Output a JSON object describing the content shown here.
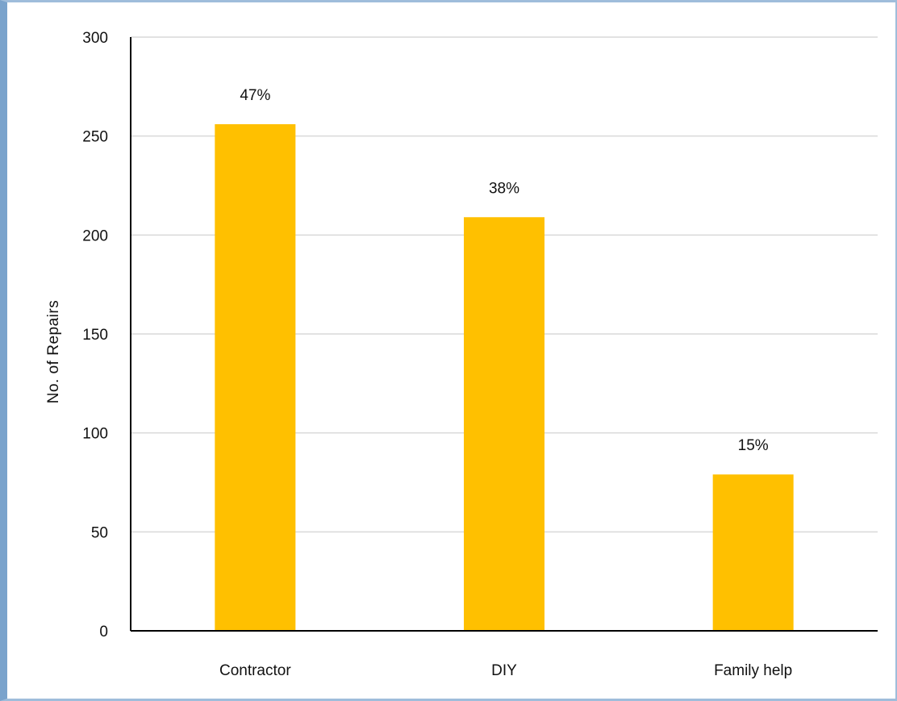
{
  "chart_data": {
    "type": "bar",
    "title": "",
    "xlabel": "",
    "ylabel": "No. of Repairs",
    "ylim": [
      0,
      300
    ],
    "yticks": [
      0,
      50,
      100,
      150,
      200,
      250,
      300
    ],
    "grid": true,
    "legend": "none",
    "categories": [
      "Contractor",
      "DIY",
      "Family help"
    ],
    "values": [
      256,
      209,
      79
    ],
    "data_labels": [
      "47%",
      "38%",
      "15%"
    ],
    "bar_color": "#ffc000",
    "grid_color": "#d9d9d9",
    "axis_color": "#000000"
  }
}
